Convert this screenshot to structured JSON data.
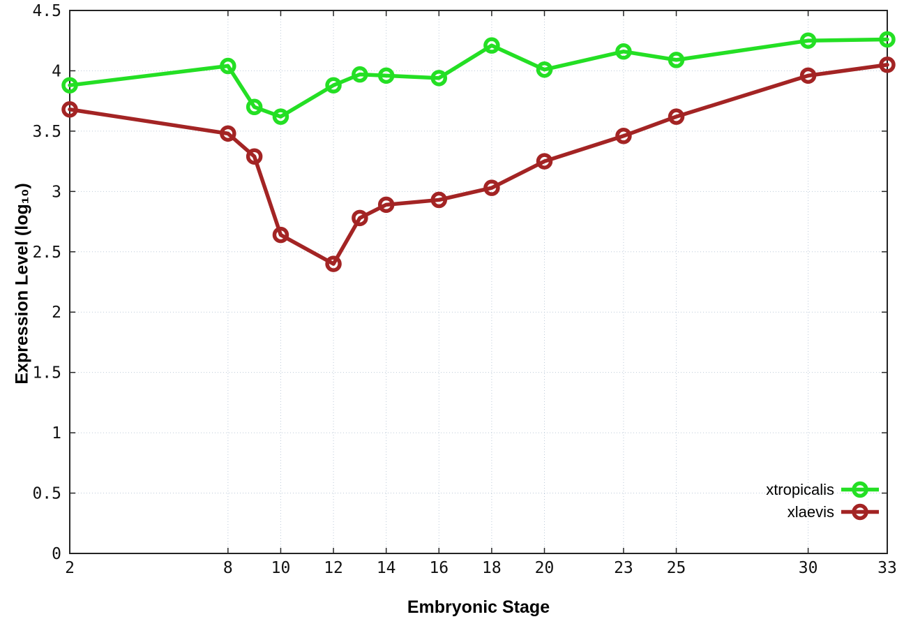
{
  "chart_data": {
    "type": "line",
    "title": "",
    "xlabel": "Embryonic Stage",
    "ylabel": "Expression Level (log₁₀)",
    "xlim": [
      2,
      33
    ],
    "ylim": [
      0,
      4.5
    ],
    "grid": true,
    "grid_style": "dotted",
    "legend_position": "bottom-right-inside",
    "marker": "open-circle",
    "x": [
      2,
      8,
      9,
      10,
      12,
      13,
      14,
      16,
      18,
      20,
      23,
      25,
      30,
      33
    ],
    "xticks": [
      2,
      8,
      10,
      12,
      14,
      16,
      18,
      20,
      23,
      25,
      30,
      33
    ],
    "xtick_labels": [
      "2",
      "8",
      "10",
      "12",
      "14",
      "16",
      "18",
      "20",
      "23",
      "25",
      "30",
      "33"
    ],
    "yticks": [
      0,
      0.5,
      1,
      1.5,
      2,
      2.5,
      3,
      3.5,
      4,
      4.5
    ],
    "ytick_labels": [
      "0",
      "0.5",
      "1",
      "1.5",
      "2",
      "2.5",
      "3",
      "3.5",
      "4",
      "4.5"
    ],
    "series": [
      {
        "name": "xtropicalis",
        "color": "#24df24",
        "values": [
          3.88,
          4.04,
          3.7,
          3.62,
          3.88,
          3.97,
          3.96,
          3.94,
          4.21,
          4.01,
          4.16,
          4.09,
          4.25,
          4.26
        ]
      },
      {
        "name": "xlaevis",
        "color": "#a32424",
        "values": [
          3.68,
          3.48,
          3.29,
          2.64,
          2.4,
          2.78,
          2.89,
          2.93,
          3.03,
          3.25,
          3.46,
          3.62,
          3.96,
          4.05
        ]
      }
    ],
    "colors": {
      "grid": "#bcc9d8",
      "axis": "#242424",
      "tick_text": "#111111"
    }
  }
}
